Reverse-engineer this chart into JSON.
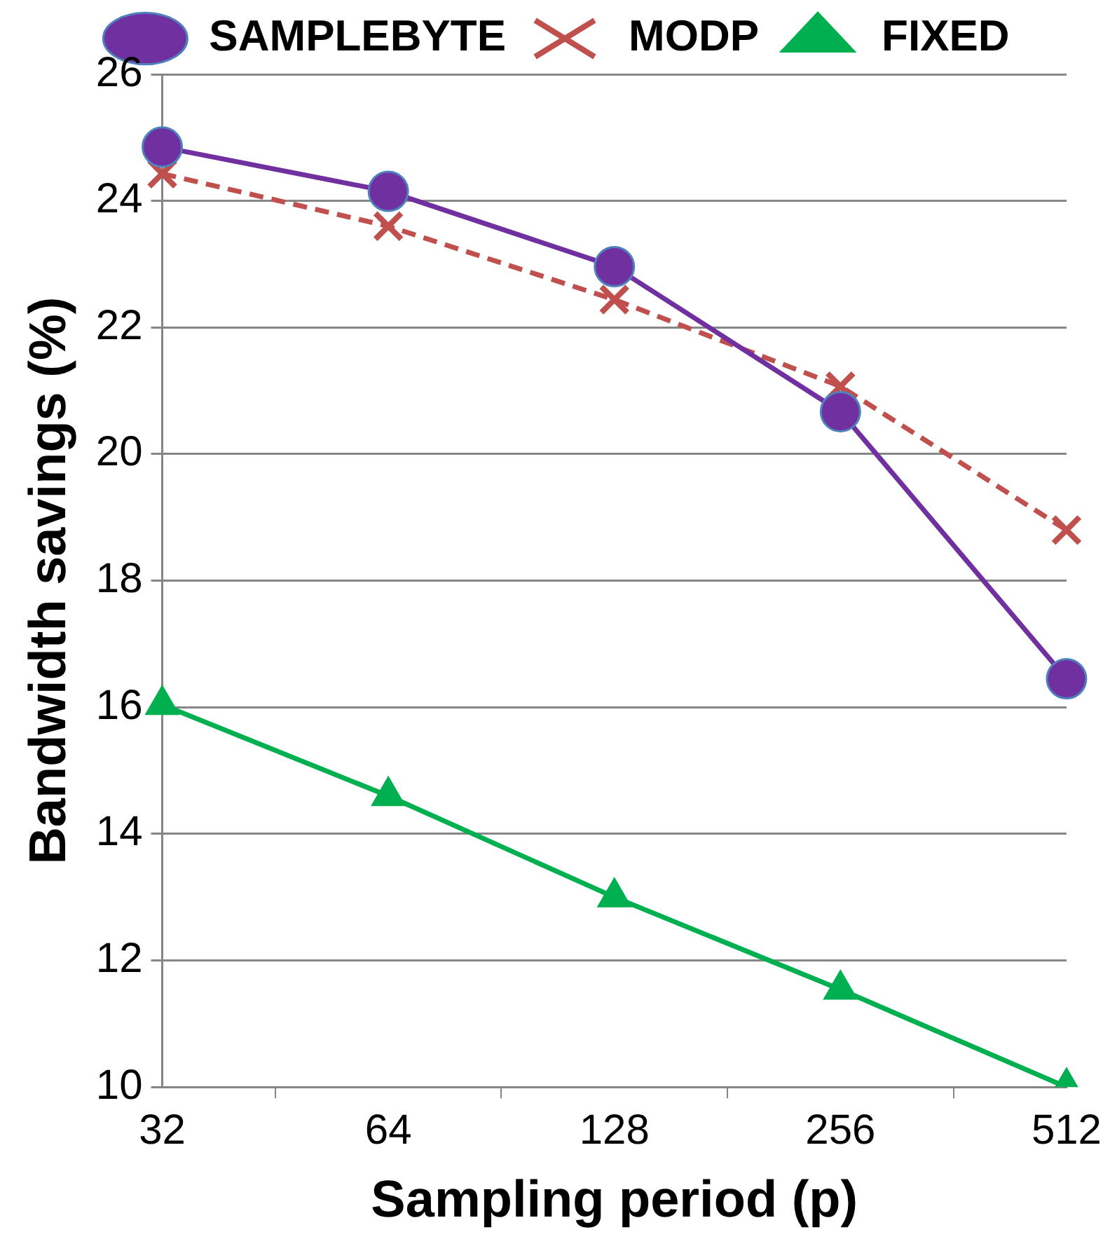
{
  "chart_data": {
    "type": "line",
    "xlabel": "Sampling period (p)",
    "ylabel": "Bandwidth savings (%)",
    "categories": [
      "32",
      "64",
      "128",
      "256",
      "512"
    ],
    "series": [
      {
        "name": "SAMPLEBYTE",
        "color": "#7030a0",
        "values": [
          24.85,
          24.15,
          22.96,
          20.67,
          16.45
        ],
        "marker": "circle",
        "line_style": "solid"
      },
      {
        "name": "MODP",
        "color": "#c0504d",
        "values": [
          24.43,
          23.6,
          22.44,
          21.07,
          18.8
        ],
        "marker": "cross",
        "line_style": "dashed"
      },
      {
        "name": "FIXED",
        "color": "#00b050",
        "values": [
          16.04,
          14.6,
          13.0,
          11.54,
          10.0
        ],
        "marker": "triangle",
        "line_style": "solid"
      }
    ],
    "ylim": [
      10,
      26
    ],
    "yticks": [
      10,
      12,
      14,
      16,
      18,
      20,
      22,
      24,
      26
    ],
    "grid": "y",
    "legend": "top"
  }
}
